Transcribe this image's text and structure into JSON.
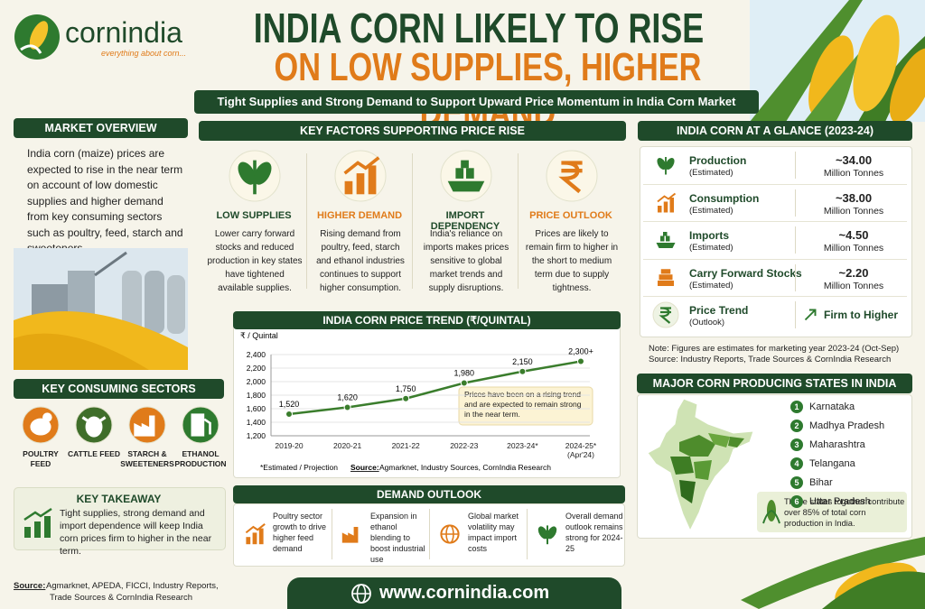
{
  "brand": {
    "name": "cornindia",
    "tagline": "everything about corn..."
  },
  "header": {
    "title_line1": "INDIA CORN LIKELY TO RISE",
    "title_line2": "ON LOW SUPPLIES, HIGHER DEMAND",
    "subtitle": "Tight Supplies and Strong Demand to Support Upward Price Momentum in India Corn Market"
  },
  "market_overview": {
    "heading": "MARKET OVERVIEW",
    "text": "India corn (maize) prices are expected to rise in the near term on account of low domestic supplies and higher demand from key consuming sectors such as poultry, feed, starch and sweeteners."
  },
  "key_factors": {
    "heading": "KEY FACTORS SUPPORTING PRICE RISE",
    "items": [
      {
        "title": "LOW SUPPLIES",
        "text": "Lower carry forward stocks and reduced production in key states have tightened available supplies."
      },
      {
        "title": "HIGHER DEMAND",
        "text": "Rising demand from poultry, feed, starch and ethanol industries continues to support higher consumption."
      },
      {
        "title": "IMPORT DEPENDENCY",
        "text": "India's reliance on imports makes prices sensitive to global market trends and supply disruptions."
      },
      {
        "title": "PRICE OUTLOOK",
        "text": "Prices are likely to remain firm to higher in the short to medium term due to supply tightness."
      }
    ]
  },
  "glance": {
    "heading": "INDIA CORN AT A GLANCE (2023-24)",
    "rows": [
      {
        "label": "Production",
        "note": "(Estimated)",
        "value": "~34.00",
        "unit": "Million Tonnes"
      },
      {
        "label": "Consumption",
        "note": "(Estimated)",
        "value": "~38.00",
        "unit": "Million Tonnes"
      },
      {
        "label": "Imports",
        "note": "(Estimated)",
        "value": "~4.50",
        "unit": "Million Tonnes"
      },
      {
        "label": "Carry Forward Stocks",
        "note": "(Estimated)",
        "value": "~2.20",
        "unit": "Million Tonnes"
      },
      {
        "label": "Price Trend",
        "note": "(Outlook)",
        "value": "Firm to Higher"
      }
    ],
    "note": "Note: Figures are estimates for marketing year 2023-24 (Oct-Sep)",
    "source": "Source: Industry Reports, Trade Sources & CornIndia Research"
  },
  "consuming_sectors": {
    "heading": "KEY CONSUMING SECTORS",
    "items": [
      "POULTRY FEED",
      "CATTLE FEED",
      "STARCH & SWEETENERS",
      "ETHANOL PRODUCTION"
    ]
  },
  "key_takeaway": {
    "heading": "KEY TAKEAWAY",
    "text": "Tight supplies, strong demand and import dependence will keep India corn prices firm to higher in the near term."
  },
  "chart_data": {
    "type": "line",
    "title": "INDIA CORN PRICE TREND (₹/QUINTAL)",
    "y_label": "₹ / Quintal",
    "categories": [
      "2019-20",
      "2020-21",
      "2021-22",
      "2022-23",
      "2023-24*",
      "2024-25*\n(Apr'24)"
    ],
    "values": [
      1520,
      1620,
      1750,
      1980,
      2150,
      2300
    ],
    "value_labels": [
      "1,520",
      "1,620",
      "1,750",
      "1,980",
      "2,150",
      "2,300+"
    ],
    "color": "#3a7d2c",
    "ylim": [
      1200,
      2400
    ],
    "yticks": [
      {
        "value": 1200,
        "label": "1,200"
      },
      {
        "value": 1400,
        "label": "1,400"
      },
      {
        "value": 1600,
        "label": "1,600"
      },
      {
        "value": 1800,
        "label": "1,800"
      },
      {
        "value": 2000,
        "label": "2,000"
      },
      {
        "value": 2200,
        "label": "2,200"
      },
      {
        "value": 2400,
        "label": "2,400"
      }
    ],
    "grid": true,
    "annotation": "Prices have been on a rising trend and are expected to remain strong in the near term.",
    "footnote": "*Estimated / Projection",
    "source_label": "Source:",
    "source": "Agmarknet, Industry Sources, CornIndia Research"
  },
  "demand_outlook": {
    "heading": "DEMAND OUTLOOK",
    "items": [
      "Poultry sector growth to drive higher feed demand",
      "Expansion in ethanol blending to boost industrial use",
      "Global market volatility may impact import costs",
      "Overall demand outlook remains strong for 2024-25"
    ]
  },
  "producing_states": {
    "heading": "MAJOR CORN PRODUCING STATES IN INDIA",
    "states": [
      {
        "number": 1,
        "name": "Karnataka"
      },
      {
        "number": 2,
        "name": "Madhya Pradesh"
      },
      {
        "number": 3,
        "name": "Maharashtra"
      },
      {
        "number": 4,
        "name": "Telangana"
      },
      {
        "number": 5,
        "name": "Bihar"
      },
      {
        "number": 6,
        "name": "Uttar Pradesh"
      }
    ],
    "note": "These states together contribute over 85% of total corn production in India."
  },
  "source": {
    "label": "Source:",
    "text": "Agmarknet, APEDA, FICCI, Industry Reports, Trade Sources & CornIndia Research"
  },
  "footer": {
    "url": "www.cornindia.com"
  }
}
